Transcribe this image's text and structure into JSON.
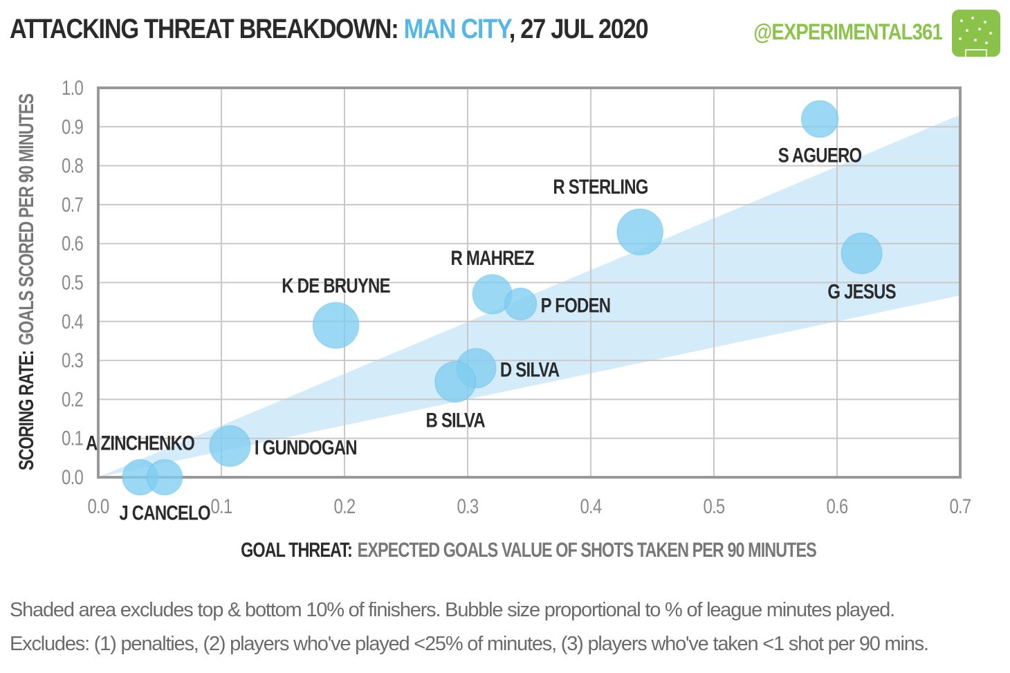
{
  "header": {
    "title_prefix": "ATTACKING THREAT BREAKDOWN: ",
    "team": "MAN CITY",
    "title_suffix": ", 27 JUL 2020",
    "handle": "@EXPERIMENTAL361",
    "logo_icon": "pitch-icon",
    "colors": {
      "title": "#2b2b2b",
      "team": "#55b6e8",
      "handle": "#8bc34a"
    }
  },
  "chart_data": {
    "type": "scatter",
    "title": "ATTACKING THREAT BREAKDOWN: MAN CITY, 27 JUL 2020",
    "xlabel_bold": "GOAL THREAT:",
    "xlabel_rest": "EXPECTED GOALS VALUE OF SHOTS  TAKEN PER 90 MINUTES",
    "ylabel_bold": "SCORING RATE:",
    "ylabel_rest": "GOALS SCORED PER 90 MINUTES",
    "xlim": [
      0,
      0.7
    ],
    "ylim": [
      0,
      1.0
    ],
    "x_ticks": [
      "0.0",
      "0.1",
      "0.2",
      "0.3",
      "0.4",
      "0.5",
      "0.6",
      "0.7"
    ],
    "y_ticks": [
      "0.0",
      "0.1",
      "0.2",
      "0.3",
      "0.4",
      "0.5",
      "0.6",
      "0.7",
      "0.8",
      "0.9",
      "1.0"
    ],
    "grid": true,
    "band": {
      "upper_slope": 1.33,
      "lower_slope": 0.667,
      "color": "#d4ecfa"
    },
    "bubble_color": "#7fcdf0",
    "points": [
      {
        "name": "S AGUERO",
        "x": 0.586,
        "y": 0.92,
        "size": 0.45,
        "label_pos": "below"
      },
      {
        "name": "R STERLING",
        "x": 0.44,
        "y": 0.63,
        "size": 0.8,
        "label_pos": "above-left"
      },
      {
        "name": "G JESUS",
        "x": 0.62,
        "y": 0.575,
        "size": 0.6,
        "label_pos": "below"
      },
      {
        "name": "R MAHREZ",
        "x": 0.32,
        "y": 0.47,
        "size": 0.55,
        "label_pos": "above"
      },
      {
        "name": "P FODEN",
        "x": 0.343,
        "y": 0.445,
        "size": 0.27,
        "label_pos": "right"
      },
      {
        "name": "K DE BRUYNE",
        "x": 0.193,
        "y": 0.39,
        "size": 0.8,
        "label_pos": "above"
      },
      {
        "name": "D SILVA",
        "x": 0.307,
        "y": 0.28,
        "size": 0.55,
        "label_pos": "right"
      },
      {
        "name": "B SILVA",
        "x": 0.29,
        "y": 0.245,
        "size": 0.6,
        "label_pos": "below"
      },
      {
        "name": "I GUNDOGAN",
        "x": 0.107,
        "y": 0.08,
        "size": 0.6,
        "label_pos": "right"
      },
      {
        "name": "A ZINCHENKO",
        "x": 0.034,
        "y": 0.0,
        "size": 0.4,
        "label_pos": "above"
      },
      {
        "name": "J CANCELO",
        "x": 0.054,
        "y": 0.0,
        "size": 0.4,
        "label_pos": "below"
      }
    ]
  },
  "footer": {
    "line1": "Shaded area excludes top & bottom  10% of finishers. Bubble size proportional to % of league minutes played.",
    "line2": "Excludes: (1) penalties, (2) players who've played <25% of minutes, (3) players who've taken <1 shot per 90 mins."
  }
}
